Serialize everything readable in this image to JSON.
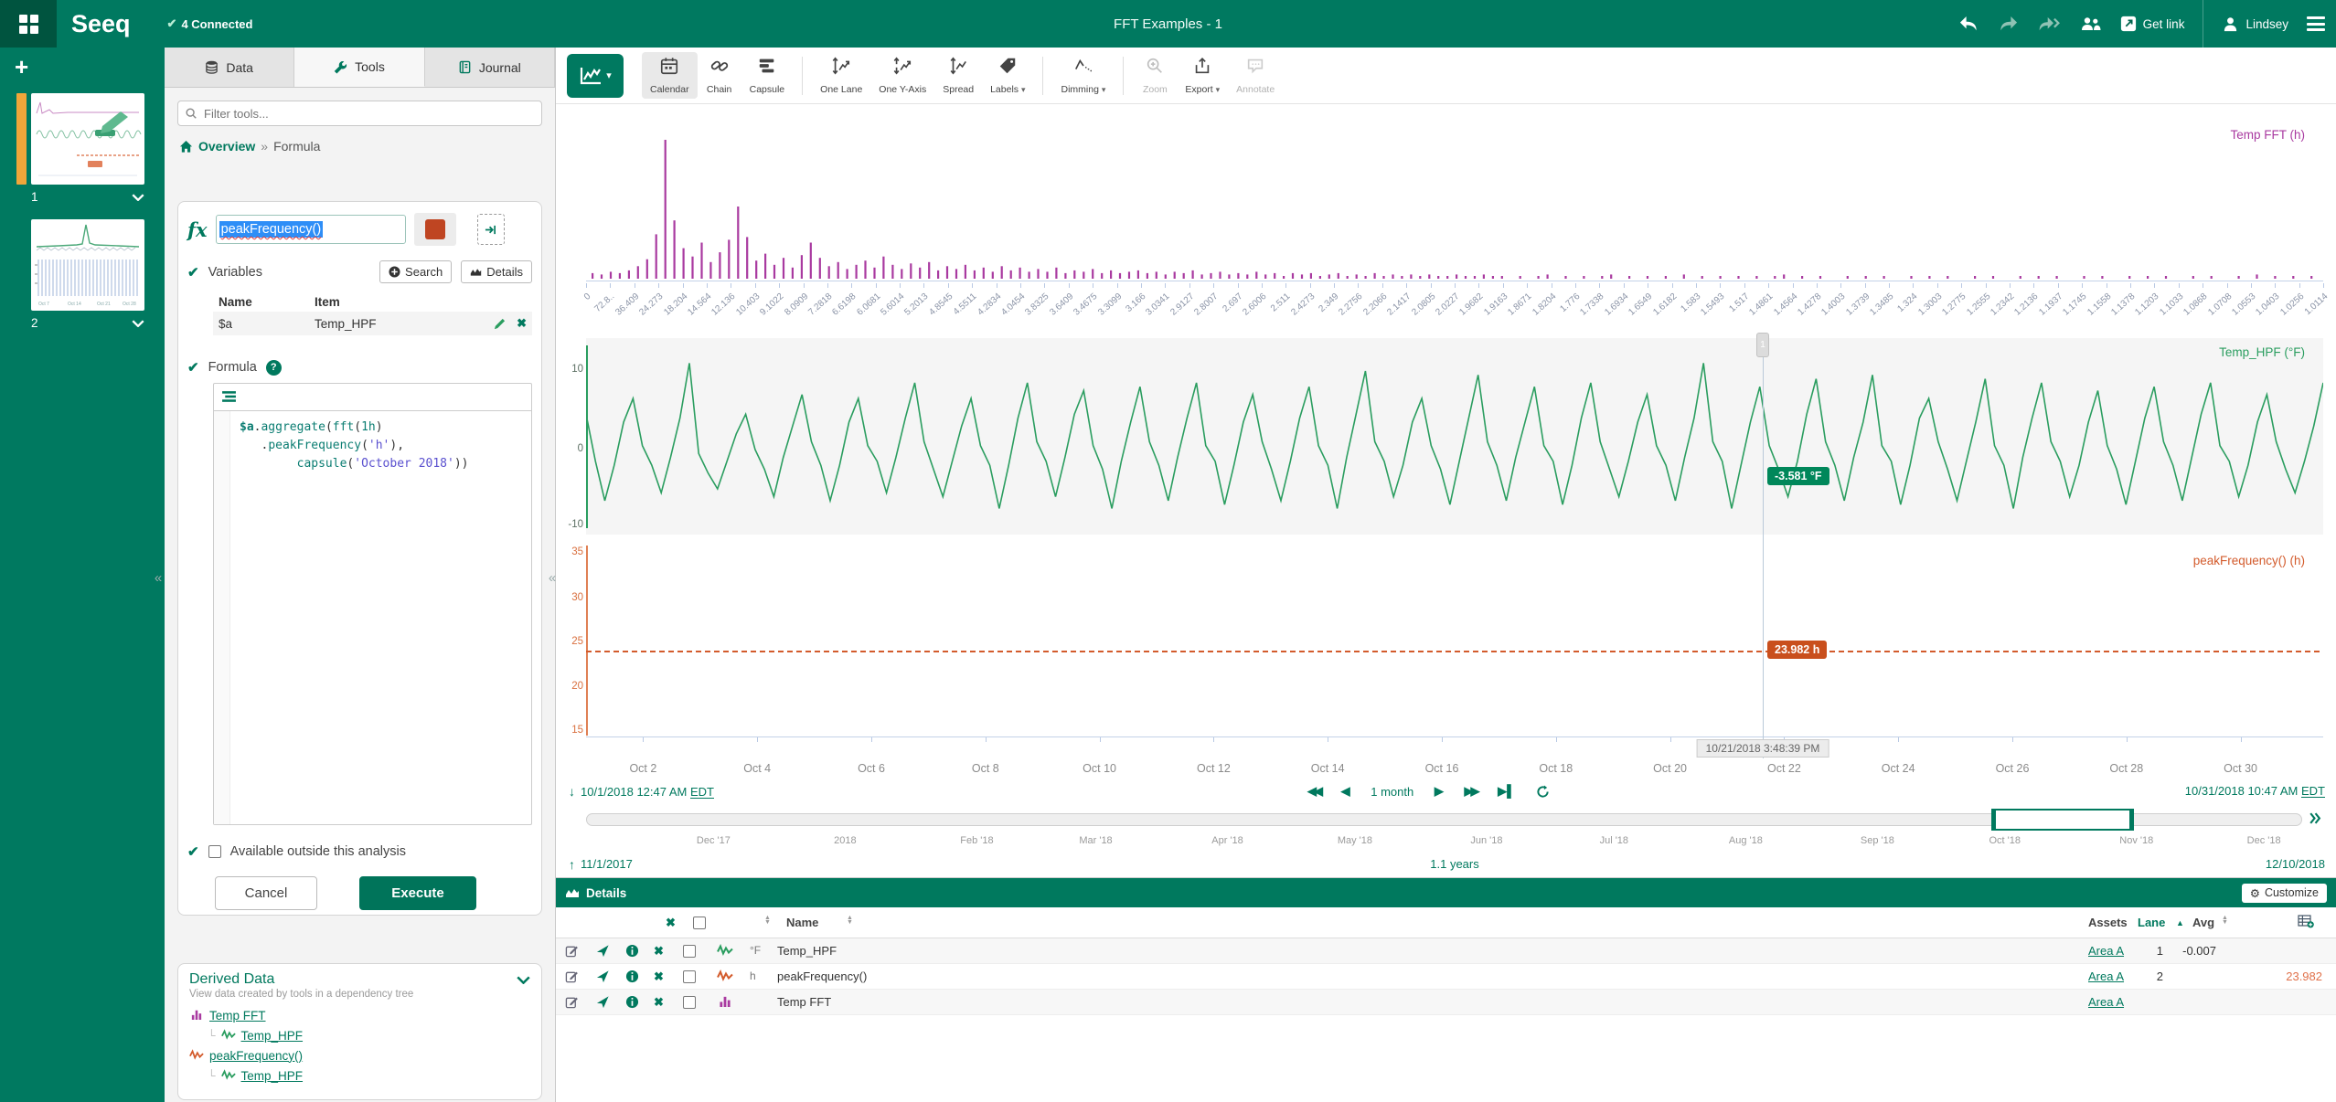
{
  "header": {
    "logo": "Seeq",
    "status": "4 Connected",
    "title": "FFT Examples - 1",
    "get_link_label": "Get link",
    "user_name": "Lindsey"
  },
  "worksheets": {
    "items": [
      {
        "label": "1"
      },
      {
        "label": "2"
      }
    ]
  },
  "tool_panel": {
    "tabs": [
      {
        "label": "Data",
        "icon": "database"
      },
      {
        "label": "Tools",
        "icon": "wrench",
        "active": true
      },
      {
        "label": "Journal",
        "icon": "journal"
      }
    ],
    "filter_placeholder": "Filter tools...",
    "breadcrumb": {
      "home": "Overview",
      "sep": "»",
      "current": "Formula"
    },
    "formula_tool": {
      "name_value": "peakFrequency()",
      "swatch_color": "#bf4522",
      "variables_label": "Variables",
      "search_button": "Search",
      "details_button": "Details",
      "columns": {
        "name": "Name",
        "item": "Item"
      },
      "variables": [
        {
          "name": "$a",
          "item": "Temp_HPF"
        }
      ],
      "formula_label": "Formula",
      "code": [
        [
          {
            "t": "$a",
            "c": "v"
          },
          {
            "t": ".",
            "c": "p"
          },
          {
            "t": "aggregate",
            "c": "f"
          },
          {
            "t": "(",
            "c": "p"
          },
          {
            "t": "fft",
            "c": "f"
          },
          {
            "t": "(",
            "c": "p"
          },
          {
            "t": "1h",
            "c": "n"
          },
          {
            "t": ")",
            "c": "p"
          }
        ],
        [
          {
            "t": "   .",
            "c": "p"
          },
          {
            "t": "peakFrequency",
            "c": "f"
          },
          {
            "t": "(",
            "c": "p"
          },
          {
            "t": "'h'",
            "c": "s"
          },
          {
            "t": "),",
            "c": "p"
          }
        ],
        [
          {
            "t": "        ",
            "c": "p"
          },
          {
            "t": "capsule",
            "c": "f"
          },
          {
            "t": "(",
            "c": "p"
          },
          {
            "t": "'October 2018'",
            "c": "s"
          },
          {
            "t": "))",
            "c": "p"
          }
        ]
      ],
      "available_label": "Available outside this analysis",
      "cancel_button": "Cancel",
      "execute_button": "Execute"
    },
    "derived_data": {
      "title": "Derived Data",
      "subtitle": "View data created by tools in a dependency tree",
      "tree": [
        {
          "label": "Temp FFT",
          "icon": "bars",
          "color": "#a93aa0",
          "indent": 0
        },
        {
          "label": "Temp_HPF",
          "icon": "signal",
          "color": "#2a9d5f",
          "indent": 1
        },
        {
          "label": "peakFrequency()",
          "icon": "signal",
          "color": "#d35b2c",
          "indent": 0
        },
        {
          "label": "Temp_HPF",
          "icon": "signal",
          "color": "#2a9d5f",
          "indent": 1
        }
      ]
    }
  },
  "toolbar": {
    "items": [
      {
        "label": "Calendar",
        "icon": "calendar",
        "active": true
      },
      {
        "label": "Chain",
        "icon": "chain"
      },
      {
        "label": "Capsule",
        "icon": "capsule"
      },
      {
        "sep": true
      },
      {
        "label": "One Lane",
        "icon": "onelane"
      },
      {
        "label": "One Y-Axis",
        "icon": "oneyaxis"
      },
      {
        "label": "Spread",
        "icon": "spread"
      },
      {
        "label": "Labels",
        "icon": "labels",
        "caret": true
      },
      {
        "sep": true
      },
      {
        "label": "Dimming",
        "icon": "dimming",
        "caret": true
      },
      {
        "sep": true
      },
      {
        "label": "Zoom",
        "icon": "zoom",
        "disabled": true
      },
      {
        "label": "Export",
        "icon": "export",
        "caret": true
      },
      {
        "label": "Annotate",
        "icon": "annotate",
        "disabled": true
      }
    ]
  },
  "chart_data": [
    {
      "type": "bar",
      "title": "Temp FFT (h)",
      "color": "#a93aa0",
      "tick_labels": [
        "0",
        "72.8..",
        "36.409",
        "24.273",
        "18.204",
        "14.564",
        "12.136",
        "10.403",
        "9.1022",
        "8.0909",
        "7.2818",
        "6.6198",
        "6.0681",
        "5.6014",
        "5.2013",
        "4.8545",
        "4.5511",
        "4.2834",
        "4.0454",
        "3.8325",
        "3.6409",
        "3.4675",
        "3.3099",
        "3.166",
        "3.0341",
        "2.9127",
        "2.8007",
        "2.697",
        "2.6006",
        "2.511",
        "2.4273",
        "2.349",
        "2.2756",
        "2.2066",
        "2.1417",
        "2.0805",
        "2.0227",
        "1.9682",
        "1.9163",
        "1.8671",
        "1.8204",
        "1.776",
        "1.7338",
        "1.6934",
        "1.6549",
        "1.6182",
        "1.583",
        "1.5493",
        "1.517",
        "1.4861",
        "1.4564",
        "1.4278",
        "1.4003",
        "1.3739",
        "1.3485",
        "1.324",
        "1.3003",
        "1.2775",
        "1.2555",
        "1.2342",
        "1.2136",
        "1.1937",
        "1.1745",
        "1.1558",
        "1.1378",
        "1.1203",
        "1.1033",
        "1.0868",
        "1.0708",
        "1.0553",
        "1.0403",
        "1.0256",
        "1.0114"
      ],
      "bars": [
        0.04,
        0.03,
        0.05,
        0.04,
        0.06,
        0.09,
        0.14,
        0.32,
        1,
        0.42,
        0.22,
        0.16,
        0.26,
        0.12,
        0.19,
        0.28,
        0.52,
        0.3,
        0.13,
        0.18,
        0.1,
        0.15,
        0.08,
        0.17,
        0.26,
        0.15,
        0.09,
        0.12,
        0.07,
        0.1,
        0.13,
        0.08,
        0.16,
        0.1,
        0.07,
        0.11,
        0.08,
        0.12,
        0.06,
        0.09,
        0.07,
        0.1,
        0.06,
        0.08,
        0.05,
        0.09,
        0.06,
        0.08,
        0.05,
        0.07,
        0.05,
        0.08,
        0.04,
        0.06,
        0.05,
        0.07,
        0.04,
        0.06,
        0.04,
        0.05,
        0.06,
        0.04,
        0.05,
        0.03,
        0.05,
        0.04,
        0.06,
        0.03,
        0.04,
        0.05,
        0.03,
        0.04,
        0.03,
        0.05,
        0.03,
        0.04,
        0.02,
        0.04,
        0.03,
        0.04,
        0.02,
        0.03,
        0.04,
        0.02,
        0.03,
        0.02,
        0.04,
        0.02,
        0.03,
        0.02,
        0.03,
        0.02,
        0.03,
        0.02,
        0.02,
        0.03,
        0.02,
        0.02,
        0.03,
        0.02,
        0.02,
        0,
        0.02,
        0,
        0.02,
        0.03,
        0,
        0.02,
        0,
        0.02,
        0,
        0.02,
        0.03,
        0,
        0.02,
        0,
        0.02,
        0,
        0.02,
        0,
        0.03,
        0,
        0.02,
        0,
        0.02,
        0,
        0.02,
        0,
        0.02,
        0,
        0.02,
        0.03,
        0,
        0.02,
        0,
        0.02,
        0,
        0,
        0.02,
        0,
        0.02,
        0,
        0.02,
        0,
        0,
        0.02,
        0,
        0.02,
        0,
        0.02,
        0,
        0,
        0.02,
        0,
        0.02,
        0,
        0,
        0.02,
        0,
        0.02,
        0,
        0.02,
        0,
        0,
        0.02,
        0,
        0.02,
        0,
        0,
        0.02,
        0,
        0.02,
        0,
        0.02,
        0,
        0,
        0.02,
        0,
        0.02,
        0,
        0,
        0.02,
        0,
        0.03,
        0,
        0.02,
        0,
        0.02,
        0,
        0.02
      ]
    },
    {
      "type": "line",
      "title": "Temp_HPF (°F)",
      "color": "#2a9d5f",
      "yticks": [
        "10",
        "0",
        "-10"
      ],
      "ylim": [
        -12,
        14
      ],
      "x_range": [
        "10/1/2018",
        "10/31/2018"
      ],
      "days": [
        [
          4.5,
          -1.5,
          -6.5,
          -2,
          3.5,
          6.5
        ],
        [
          0.5,
          -2,
          -5.5,
          -1,
          4,
          11
        ],
        [
          -0.5,
          -3,
          -5,
          -1.5,
          2,
          4.5
        ],
        [
          0,
          -2.5,
          -6,
          -1,
          3,
          7
        ],
        [
          1,
          -2,
          -6.5,
          -2,
          3.5,
          6.5
        ],
        [
          0.5,
          -1.5,
          -5.5,
          -1,
          4,
          8.5
        ],
        [
          1,
          -2.5,
          -6,
          -1.5,
          3,
          6.5
        ],
        [
          0.5,
          -2,
          -7.5,
          -2,
          4,
          8.5
        ],
        [
          1,
          -1.5,
          -6,
          -1,
          4.5,
          7.5
        ],
        [
          0.5,
          -2.5,
          -7.5,
          -1.5,
          3.5,
          8
        ],
        [
          1,
          -2,
          -6.5,
          -1,
          4,
          8.5
        ],
        [
          0.5,
          -1.5,
          -7,
          -2,
          3.5,
          7
        ],
        [
          1,
          -2.5,
          -6.5,
          -1.5,
          4,
          8
        ],
        [
          0.5,
          -2,
          -7.5,
          -1,
          4.5,
          10
        ],
        [
          1,
          -1.5,
          -6,
          -2,
          3.5,
          6.5
        ],
        [
          0.5,
          -2.5,
          -7,
          -1.5,
          4,
          9.5
        ],
        [
          1,
          -2,
          -6.5,
          -1,
          3.5,
          8
        ],
        [
          0.5,
          -1.5,
          -7,
          -2,
          4,
          8.5
        ],
        [
          1,
          -2.5,
          -6,
          -1.5,
          3.5,
          7
        ],
        [
          0.5,
          -2,
          -6.5,
          -1,
          4,
          11
        ],
        [
          1,
          -1.5,
          -7.5,
          -2,
          3.5,
          8
        ],
        [
          0.5,
          -2.5,
          -6,
          -1.5,
          4.5,
          9
        ],
        [
          1,
          -2,
          -6.5,
          -1,
          3.5,
          9.5
        ],
        [
          0.5,
          -1.5,
          -7,
          -2,
          4,
          6.5
        ],
        [
          1,
          -2.5,
          -6.5,
          -1.5,
          3.5,
          9
        ],
        [
          0.5,
          -2,
          -7.5,
          -1,
          4,
          8.5
        ],
        [
          1,
          -1.5,
          -6,
          -2,
          3.5,
          7.5
        ],
        [
          0.5,
          -2.5,
          -7,
          -1.5,
          4,
          8
        ],
        [
          1,
          -2,
          -6.5,
          -1,
          4.5,
          8.5
        ],
        [
          0.5,
          -1.5,
          -6,
          -2,
          3.5,
          7
        ],
        [
          1,
          -2.5,
          -5.5,
          -1.5,
          3,
          8.5
        ]
      ]
    },
    {
      "type": "line",
      "title": "peakFrequency() (h)",
      "color": "#d35b2c",
      "style": "dashed",
      "yticks": [
        "35",
        "30",
        "25",
        "20",
        "15"
      ],
      "ylim": [
        12.5,
        36
      ],
      "value": 23.982
    }
  ],
  "x_axis": {
    "dates": [
      {
        "label": "Oct 2",
        "day": 2
      },
      {
        "label": "Oct 4",
        "day": 4
      },
      {
        "label": "Oct 6",
        "day": 6
      },
      {
        "label": "Oct 8",
        "day": 8
      },
      {
        "label": "Oct 10",
        "day": 10
      },
      {
        "label": "Oct 12",
        "day": 12
      },
      {
        "label": "Oct 14",
        "day": 14
      },
      {
        "label": "Oct 16",
        "day": 16
      },
      {
        "label": "Oct 18",
        "day": 18
      },
      {
        "label": "Oct 20",
        "day": 20
      },
      {
        "label": "Oct 22",
        "day": 22
      },
      {
        "label": "Oct 24",
        "day": 24
      },
      {
        "label": "Oct 26",
        "day": 26
      },
      {
        "label": "Oct 28",
        "day": 28
      },
      {
        "label": "Oct 30",
        "day": 30
      }
    ]
  },
  "cursor": {
    "timestamp": "10/21/2018 3:48:39 PM",
    "hpf_value": "-3.581 °F",
    "freq_value": "23.982 h"
  },
  "range": {
    "start": "10/1/2018 12:47 AM",
    "start_tz": "EDT",
    "duration": "1 month",
    "end": "10/31/2018 10:47 AM",
    "end_tz": "EDT"
  },
  "timeline": {
    "months": [
      {
        "label": "Dec '17",
        "day": 30
      },
      {
        "label": "2018",
        "day": 61
      },
      {
        "label": "Feb '18",
        "day": 92
      },
      {
        "label": "Mar '18",
        "day": 120
      },
      {
        "label": "Apr '18",
        "day": 151
      },
      {
        "label": "May '18",
        "day": 181
      },
      {
        "label": "Jun '18",
        "day": 212
      },
      {
        "label": "Jul '18",
        "day": 242
      },
      {
        "label": "Aug '18",
        "day": 273
      },
      {
        "label": "Sep '18",
        "day": 304
      },
      {
        "label": "Oct '18",
        "day": 334
      },
      {
        "label": "Nov '18",
        "day": 365
      },
      {
        "label": "Dec '18",
        "day": 395
      }
    ],
    "start": "11/1/2017",
    "duration": "1.1 years",
    "end": "12/10/2018"
  },
  "details": {
    "title": "Details",
    "customize_button": "Customize",
    "columns": {
      "name": "Name",
      "assets": "Assets",
      "lane": "Lane",
      "avg": "Avg"
    },
    "rows": [
      {
        "unit": "°F",
        "name": "Temp_HPF",
        "assets": "Area A",
        "lane": "1",
        "avg": "-0.007",
        "cursor_value": "",
        "color": "#2a9d5f",
        "icon": "signal"
      },
      {
        "unit": "h",
        "name": "peakFrequency()",
        "assets": "Area A",
        "lane": "2",
        "avg": "",
        "cursor_value": "23.982",
        "color": "#d35b2c",
        "icon": "signal"
      },
      {
        "unit": "",
        "name": "Temp FFT",
        "assets": "Area A",
        "lane": "",
        "avg": "",
        "cursor_value": "",
        "color": "#a93aa0",
        "icon": "bars"
      }
    ]
  }
}
